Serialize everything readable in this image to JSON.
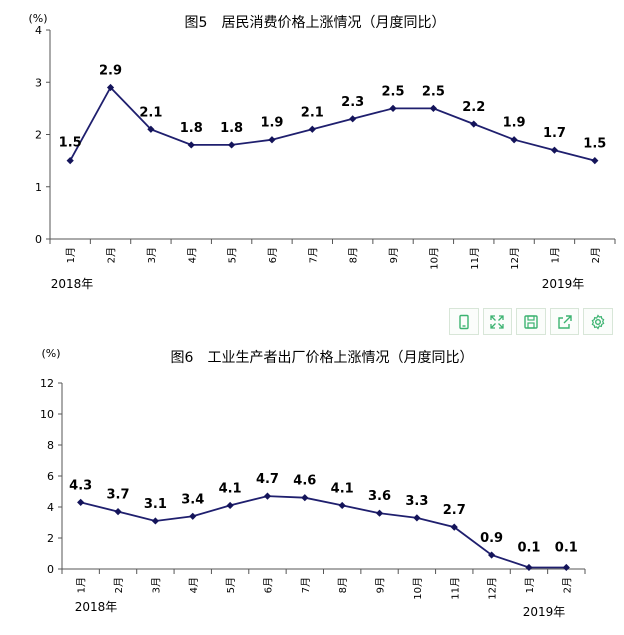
{
  "colors": {
    "line": "#1f1f6e",
    "marker": "#14145a",
    "axis": "#555555",
    "text": "#000000",
    "toolbar_icon": "#3cb371"
  },
  "toolbar": {
    "icons": [
      "tablet-icon",
      "fullscreen-icon",
      "save-icon",
      "share-icon",
      "settings-icon"
    ]
  },
  "chart_data": [
    {
      "type": "line",
      "title": "图5　居民消费价格上涨情况（月度同比）",
      "ylabel": "(%)",
      "ylim": [
        0,
        4
      ],
      "yticks": [
        "0",
        "1",
        "2",
        "3",
        "4"
      ],
      "categories": [
        "1月",
        "2月",
        "3月",
        "4月",
        "5月",
        "6月",
        "7月",
        "8月",
        "9月",
        "10月",
        "11月",
        "12月",
        "1月",
        "2月"
      ],
      "values": [
        1.5,
        2.9,
        2.1,
        1.8,
        1.8,
        1.9,
        2.1,
        2.3,
        2.5,
        2.5,
        2.2,
        1.9,
        1.7,
        1.5
      ],
      "data_labels": [
        "1.5",
        "2.9",
        "2.1",
        "1.8",
        "1.8",
        "1.9",
        "2.1",
        "2.3",
        "2.5",
        "2.5",
        "2.2",
        "1.9",
        "1.7",
        "1.5"
      ],
      "year_labels": [
        "2018年",
        "2019年"
      ],
      "grid": false
    },
    {
      "type": "line",
      "title": "图6　工业生产者出厂价格上涨情况（月度同比）",
      "ylabel": "(%)",
      "ylim": [
        0,
        12
      ],
      "yticks": [
        "0",
        "2",
        "4",
        "6",
        "8",
        "10",
        "12"
      ],
      "categories": [
        "1月",
        "2月",
        "3月",
        "4月",
        "5月",
        "6月",
        "7月",
        "8月",
        "9月",
        "10月",
        "11月",
        "12月",
        "1月",
        "2月"
      ],
      "values": [
        4.3,
        3.7,
        3.1,
        3.4,
        4.1,
        4.7,
        4.6,
        4.1,
        3.6,
        3.3,
        2.7,
        0.9,
        0.1,
        0.1
      ],
      "data_labels": [
        "4.3",
        "3.7",
        "3.1",
        "3.4",
        "4.1",
        "4.7",
        "4.6",
        "4.1",
        "3.6",
        "3.3",
        "2.7",
        "0.9",
        "0.1",
        "0.1"
      ],
      "year_labels": [
        "2018年",
        "2019年"
      ],
      "grid": false
    }
  ]
}
